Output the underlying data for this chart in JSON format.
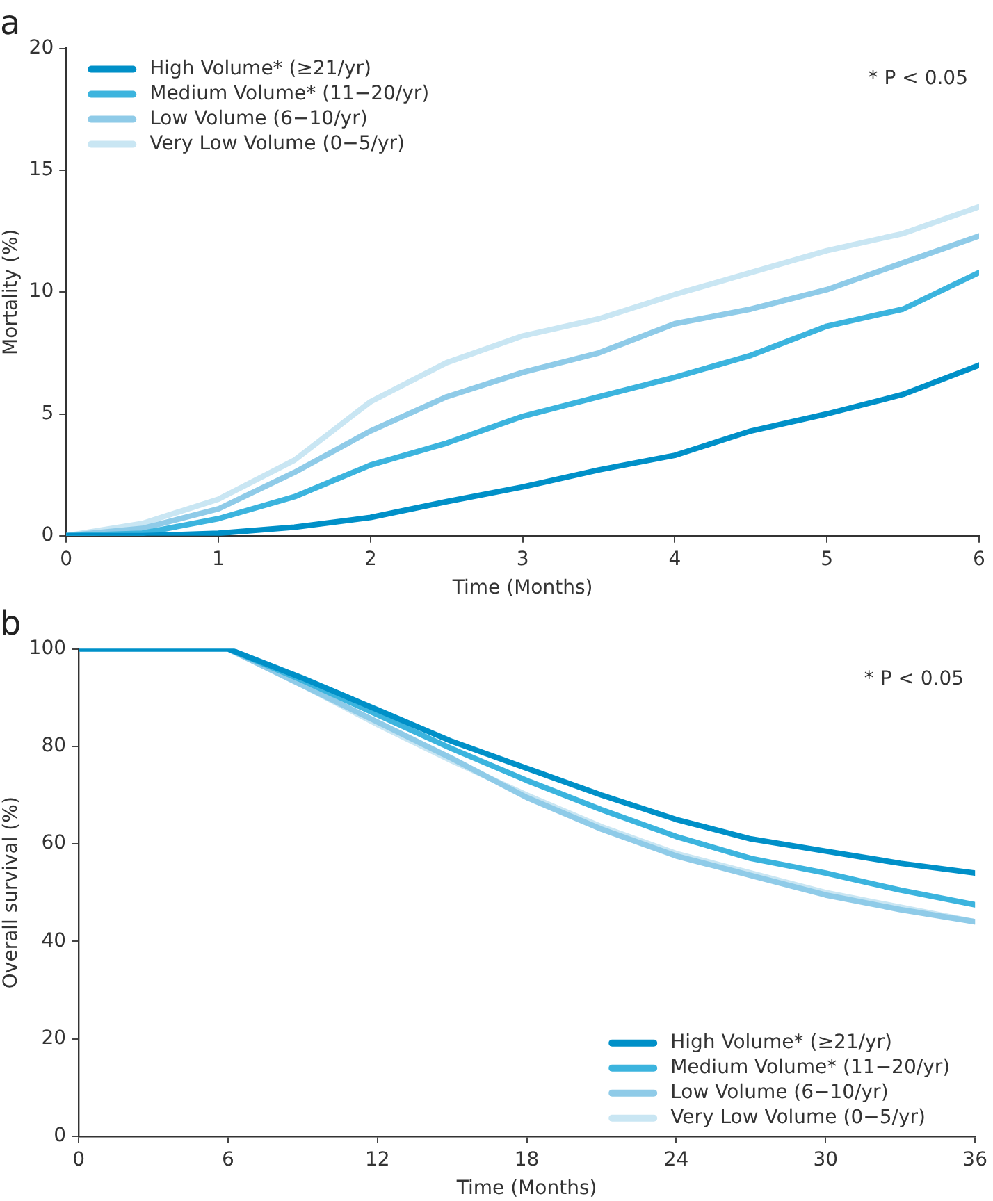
{
  "chart_data": [
    {
      "type": "line",
      "title": "a",
      "xlabel": "Time (Months)",
      "ylabel": "Mortality (%)",
      "xlim": [
        0,
        6
      ],
      "xticks": [
        0,
        1,
        2,
        3,
        4,
        5,
        6
      ],
      "ylim": [
        0,
        20
      ],
      "yticks": [
        0,
        5,
        10,
        15,
        20
      ],
      "grid": false,
      "legend": "top left",
      "marker": "none",
      "line_style": "solid",
      "annotations": [
        "* P < 0.05"
      ],
      "x": [
        0,
        0.5,
        1,
        1.5,
        2,
        2.5,
        3,
        3.5,
        4,
        4.5,
        5,
        5.5,
        6
      ],
      "series": [
        {
          "name": "High Volume* (≥21/yr)",
          "color": "#0090c8",
          "values": [
            0,
            0,
            0.1,
            0.35,
            0.75,
            1.4,
            2.0,
            2.7,
            3.3,
            4.3,
            5.0,
            5.8,
            7.0
          ]
        },
        {
          "name": "Medium Volume* (11−20/yr)",
          "color": "#3cb4de",
          "values": [
            0,
            0.1,
            0.7,
            1.6,
            2.9,
            3.8,
            4.9,
            5.7,
            6.5,
            7.4,
            8.6,
            9.3,
            10.8
          ]
        },
        {
          "name": "Low Volume (6−10/yr)",
          "color": "#8fcbe8",
          "values": [
            0,
            0.3,
            1.1,
            2.6,
            4.3,
            5.7,
            6.7,
            7.5,
            8.7,
            9.3,
            10.1,
            11.2,
            12.3
          ]
        },
        {
          "name": "Very Low Volume (0−5/yr)",
          "color": "#c9e6f3",
          "values": [
            0,
            0.5,
            1.5,
            3.1,
            5.5,
            7.1,
            8.2,
            8.9,
            9.9,
            10.8,
            11.7,
            12.4,
            13.5
          ]
        }
      ]
    },
    {
      "type": "line",
      "title": "b",
      "xlabel": "Time (Months)",
      "ylabel": "Overall survival (%)",
      "xlim": [
        0,
        36
      ],
      "xticks": [
        0,
        6,
        12,
        18,
        24,
        30,
        36
      ],
      "ylim": [
        0,
        100
      ],
      "yticks": [
        0,
        20,
        40,
        60,
        80,
        100
      ],
      "grid": false,
      "legend": "bottom right",
      "marker": "none",
      "line_style": "solid",
      "annotations": [
        "* P < 0.05"
      ],
      "x": [
        0,
        6,
        9,
        12,
        15,
        18,
        21,
        24,
        27,
        30,
        33,
        36
      ],
      "series": [
        {
          "name": "High Volume* (≥21/yr)",
          "color": "#0090c8",
          "values": [
            100,
            100,
            94,
            87.5,
            81,
            75.5,
            70,
            65,
            61,
            58.5,
            56,
            54
          ]
        },
        {
          "name": "Medium Volume* (11−20/yr)",
          "color": "#3cb4de",
          "values": [
            100,
            100,
            93.5,
            86.5,
            79.5,
            73,
            67,
            61.5,
            57,
            54,
            50.5,
            47.5
          ]
        },
        {
          "name": "Low Volume (6−10/yr)",
          "color": "#8fcbe8",
          "values": [
            100,
            100,
            92.5,
            85,
            77.5,
            69.5,
            63,
            57.5,
            53.5,
            49.5,
            46.5,
            44
          ]
        },
        {
          "name": "Very Low Volume (0−5/yr)",
          "color": "#c9e6f3",
          "values": [
            100,
            100,
            92.5,
            84.5,
            77,
            70,
            63.5,
            58,
            54,
            50,
            47,
            44
          ]
        }
      ]
    }
  ]
}
